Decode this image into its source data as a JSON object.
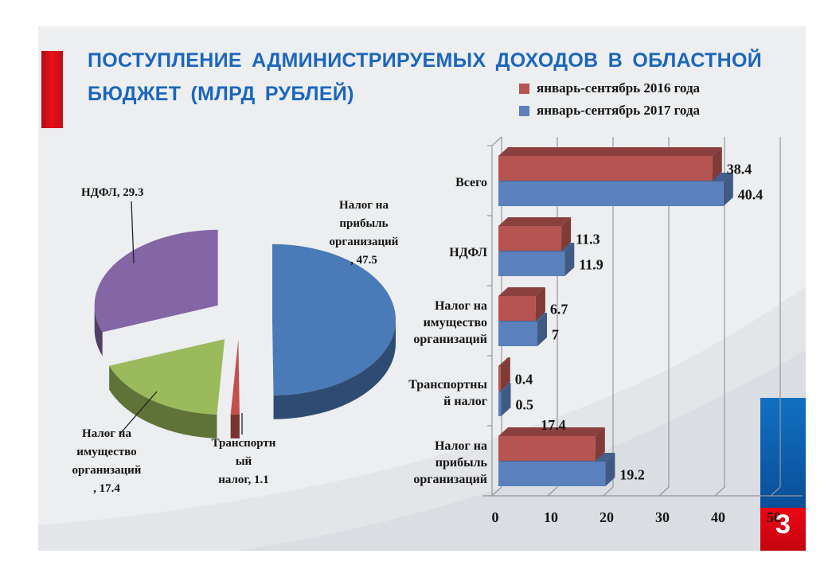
{
  "slide": {
    "title": "ПОСТУПЛЕНИЕ АДМИНИСТРИРУЕМЫХ ДОХОДОВ В ОБЛАСТНОЙ БЮДЖЕТ (МЛРД РУБЛЕЙ)",
    "page_number": "3",
    "background_color": "#eceef0",
    "accent_color": "#d6101a",
    "title_color": "#1b66bd"
  },
  "chart_data": [
    {
      "type": "pie",
      "style": "3d-exploded",
      "title": "",
      "slices": [
        {
          "label": "Налог на прибыль организаций",
          "value": 47.5,
          "display": "Налог на\nприбыль\nорганизаций\n, 47.5",
          "color": "#4a7ab8"
        },
        {
          "label": "Транспортный налог",
          "value": 1.1,
          "display": "Транспортн\nый\nналог, 1.1",
          "color": "#c4504d"
        },
        {
          "label": "Налог на имущество организаций",
          "value": 17.4,
          "display": "Налог на\nимущество\nорганизаций\n, 17.4",
          "color": "#9aba5c"
        },
        {
          "label": "НДФЛ",
          "value": 29.3,
          "display": "НДФЛ, 29.3",
          "color": "#8465a5"
        }
      ]
    },
    {
      "type": "bar",
      "orientation": "horizontal",
      "style": "3d",
      "title": "",
      "categories": [
        "Всего",
        "НДФЛ",
        "Налог на\nимущество\nорганизаций",
        "Транспортны\nй налог",
        "Налог на\nприбыль\nорганизаций"
      ],
      "series": [
        {
          "name": "январь-сентябрь 2016 года",
          "color": "#b55450",
          "values": [
            38.4,
            11.3,
            6.7,
            0.4,
            17.4
          ]
        },
        {
          "name": "январь-сентябрь 2017 года",
          "color": "#5b81bd",
          "values": [
            40.4,
            11.9,
            7,
            0.5,
            19.2
          ]
        }
      ],
      "xlim": [
        0,
        50
      ],
      "xticks": [
        0,
        10,
        20,
        30,
        40,
        50
      ],
      "grid": true,
      "legend_position": "top-right"
    }
  ]
}
